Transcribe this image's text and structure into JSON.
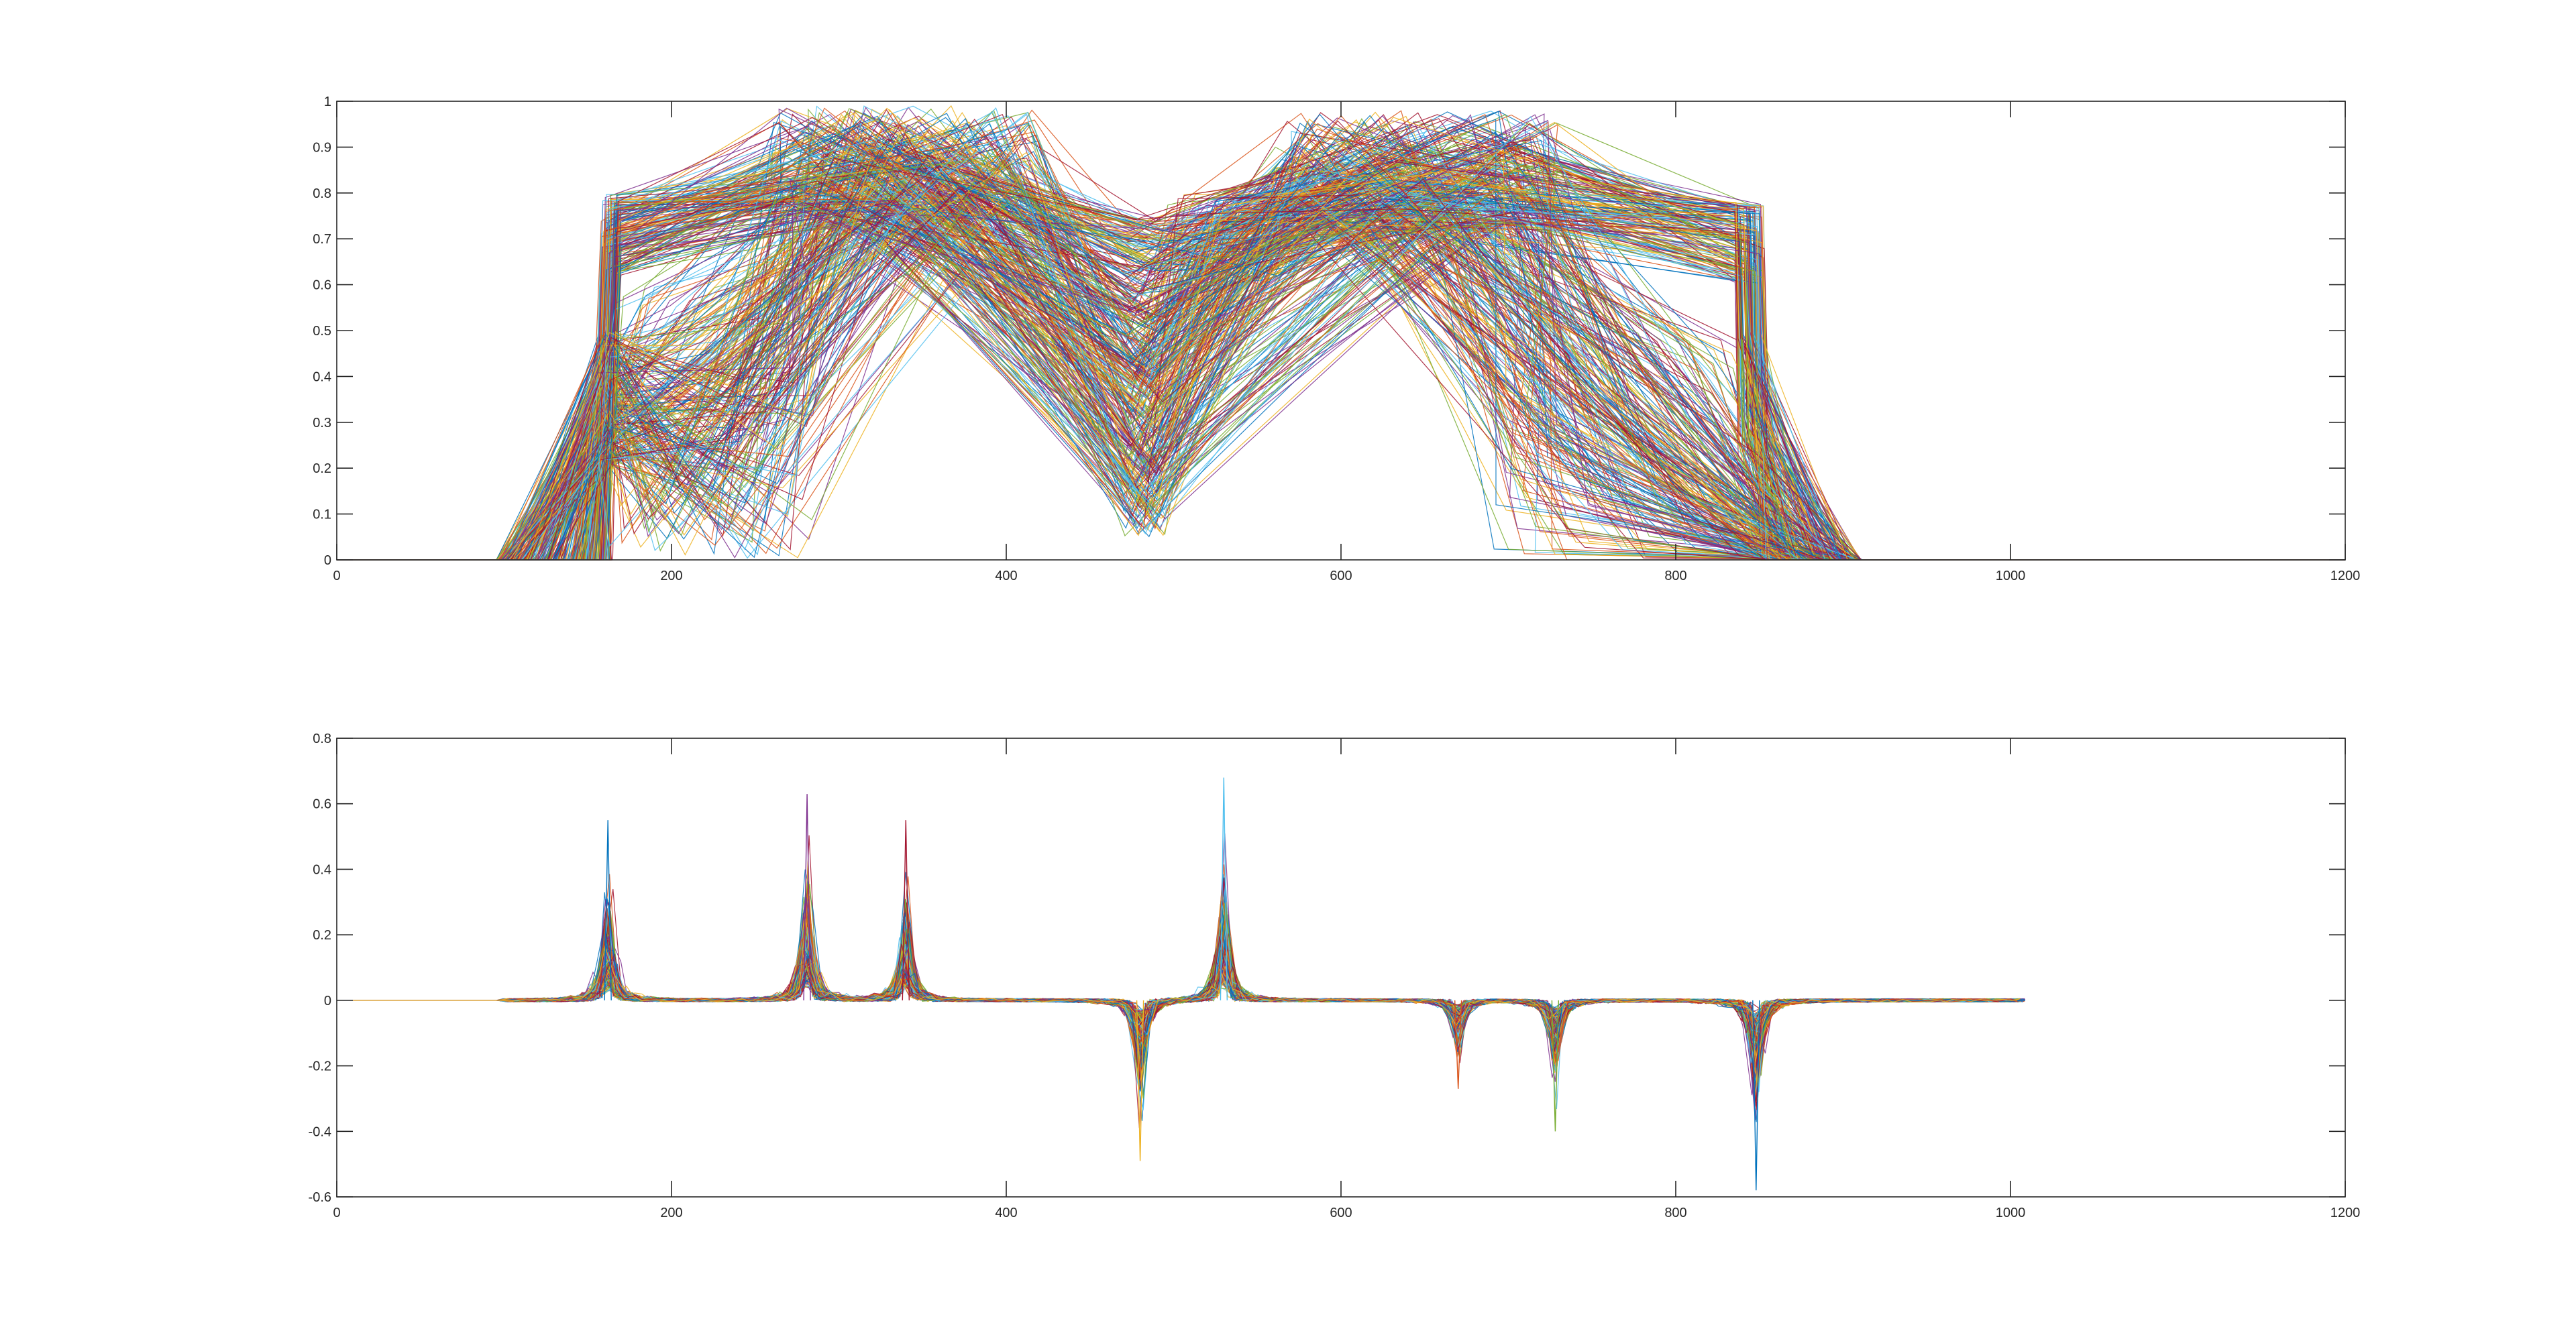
{
  "chart_data": [
    {
      "type": "line",
      "title": "",
      "xlabel": "",
      "ylabel": "",
      "xlim": [
        0,
        1200
      ],
      "ylim": [
        0,
        1
      ],
      "xticks": [
        "0",
        "200",
        "400",
        "600",
        "800",
        "1000",
        "1200"
      ],
      "yticks": [
        "0",
        "0.1",
        "0.2",
        "0.3",
        "0.4",
        "0.5",
        "0.6",
        "0.7",
        "0.8",
        "0.9",
        "1"
      ],
      "grid": false,
      "legend": "none",
      "series_count_estimate": 400,
      "description_of_series": "hundreds of overlapping curves; each rises from 0 near x≈95–165, stays near 0.65–0.98, dips around x≈480, and returns to 0 near x≈845–912",
      "envelope": {
        "x": [
          0,
          95,
          130,
          160,
          165,
          200,
          280,
          330,
          380,
          420,
          460,
          480,
          500,
          530,
          560,
          600,
          630,
          680,
          720,
          760,
          800,
          840,
          850,
          880,
          912,
          1200
        ],
        "y": [
          0,
          0,
          0.18,
          0.38,
          0.78,
          0.79,
          0.86,
          0.95,
          0.99,
          0.93,
          0.8,
          0.74,
          0.76,
          0.8,
          0.88,
          0.95,
          0.98,
          0.93,
          0.85,
          0.8,
          0.79,
          0.78,
          0.4,
          0.18,
          0,
          0
        ]
      }
    },
    {
      "type": "line",
      "title": "",
      "xlabel": "",
      "ylabel": "",
      "xlim": [
        0,
        1200
      ],
      "ylim": [
        -0.6,
        0.8
      ],
      "xticks": [
        "0",
        "200",
        "400",
        "600",
        "800",
        "1000",
        "1200"
      ],
      "yticks": [
        "-0.6",
        "-0.4",
        "-0.2",
        "0",
        "0.2",
        "0.4",
        "0.6",
        "0.8"
      ],
      "grid": false,
      "legend": "none",
      "series_count_estimate": 400,
      "description_of_series": "hundreds of overlapping near-zero curves from x≈95 to x≈1003 with sharp spikes",
      "spikes": [
        {
          "x": 162,
          "peak": 0.55
        },
        {
          "x": 281,
          "peak": 0.63
        },
        {
          "x": 340,
          "peak": 0.55
        },
        {
          "x": 480,
          "peak": -0.49
        },
        {
          "x": 530,
          "peak": 0.68
        },
        {
          "x": 670,
          "peak": -0.27
        },
        {
          "x": 728,
          "peak": -0.4
        },
        {
          "x": 848,
          "peak": -0.58
        }
      ]
    }
  ],
  "colors": [
    "#0072BD",
    "#D95319",
    "#EDB120",
    "#7E2F8E",
    "#77AC30",
    "#4DBEEE",
    "#A2142F"
  ]
}
